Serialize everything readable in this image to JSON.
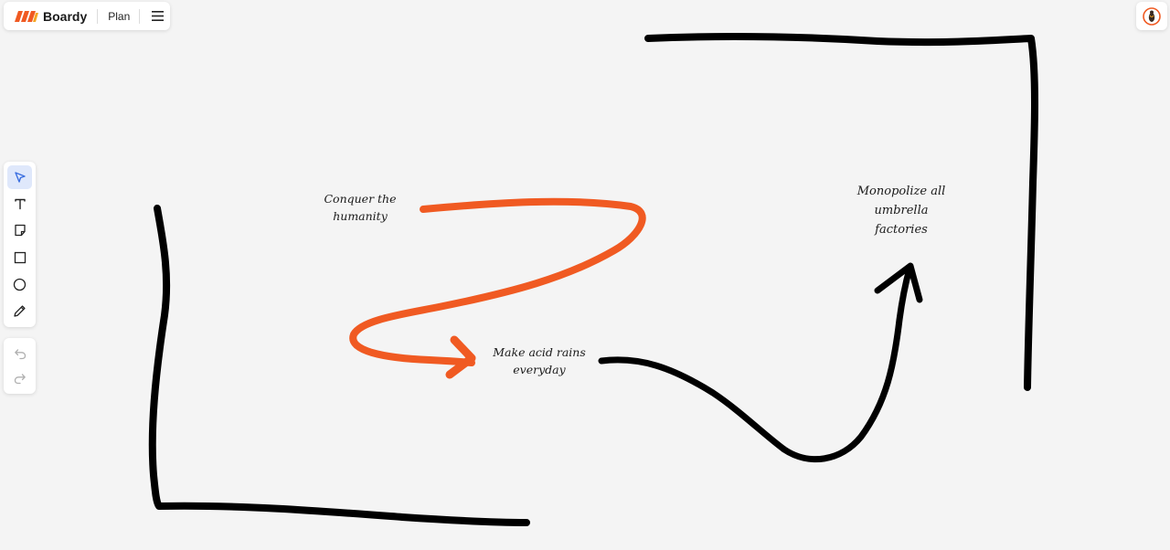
{
  "header": {
    "brand": "Boardy",
    "plan_label": "Plan",
    "logo_icon": "boardy-logo-icon",
    "menu_icon": "hamburger-menu-icon"
  },
  "user": {
    "avatar_icon": "user-avatar-icon"
  },
  "toolbar": {
    "tools": [
      {
        "name": "select",
        "icon": "cursor-arrow-icon",
        "active": true
      },
      {
        "name": "text",
        "icon": "text-icon",
        "active": false
      },
      {
        "name": "sticky-note",
        "icon": "sticky-note-icon",
        "active": false
      },
      {
        "name": "rectangle",
        "icon": "square-icon",
        "active": false
      },
      {
        "name": "ellipse",
        "icon": "circle-icon",
        "active": false
      },
      {
        "name": "pen",
        "icon": "pencil-icon",
        "active": false
      }
    ],
    "history": [
      {
        "name": "undo",
        "icon": "undo-icon",
        "enabled": false
      },
      {
        "name": "redo",
        "icon": "redo-icon",
        "enabled": false
      }
    ]
  },
  "board": {
    "notes": [
      {
        "id": "conquer",
        "text": "Conquer the\nhumanity"
      },
      {
        "id": "acid",
        "text": "Make acid rains\neveryday"
      },
      {
        "id": "umbrella",
        "text": "Monopolize all\numbrella\nfactories"
      }
    ],
    "colors": {
      "accent": "#f05a22",
      "ink": "#000000",
      "background": "#f4f4f4",
      "active_tool": "#dfe8fb"
    }
  }
}
